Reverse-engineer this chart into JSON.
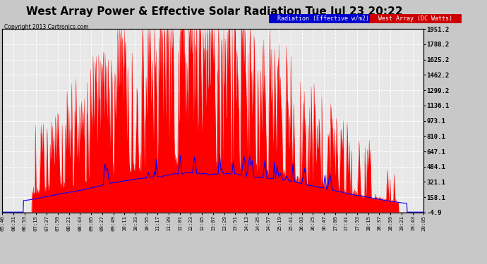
{
  "title": "West Array Power & Effective Solar Radiation Tue Jul 23 20:22",
  "copyright": "Copyright 2013 Cartronics.com",
  "legend_items": [
    {
      "label": "Radiation (Effective w/m2)",
      "facecolor": "#0000cc"
    },
    {
      "label": "West Array (DC Watts)",
      "facecolor": "#cc0000"
    }
  ],
  "yticks": [
    -4.9,
    158.1,
    321.1,
    484.1,
    647.1,
    810.1,
    973.1,
    1136.1,
    1299.2,
    1462.2,
    1625.2,
    1788.2,
    1951.2
  ],
  "ylim": [
    -4.9,
    1951.2
  ],
  "xtick_labels": [
    "05:46",
    "06:31",
    "06:53",
    "07:15",
    "07:37",
    "07:59",
    "08:21",
    "08:43",
    "09:05",
    "09:27",
    "09:49",
    "10:11",
    "10:33",
    "10:55",
    "11:17",
    "11:39",
    "12:01",
    "12:23",
    "12:45",
    "13:07",
    "13:29",
    "13:51",
    "14:13",
    "14:35",
    "14:57",
    "15:19",
    "15:41",
    "16:03",
    "16:25",
    "16:47",
    "17:09",
    "17:31",
    "17:53",
    "18:15",
    "18:37",
    "18:59",
    "19:21",
    "19:43",
    "20:05"
  ],
  "bg_color": "#c8c8c8",
  "plot_bg_color": "#e8e8e8",
  "title_fontsize": 11,
  "title_color": "#000000",
  "grid_color": "#ffffff",
  "fill_red_color": "#ff0000",
  "fill_blue_color": "#0000ff",
  "spine_color": "#000000",
  "n_points": 1200
}
